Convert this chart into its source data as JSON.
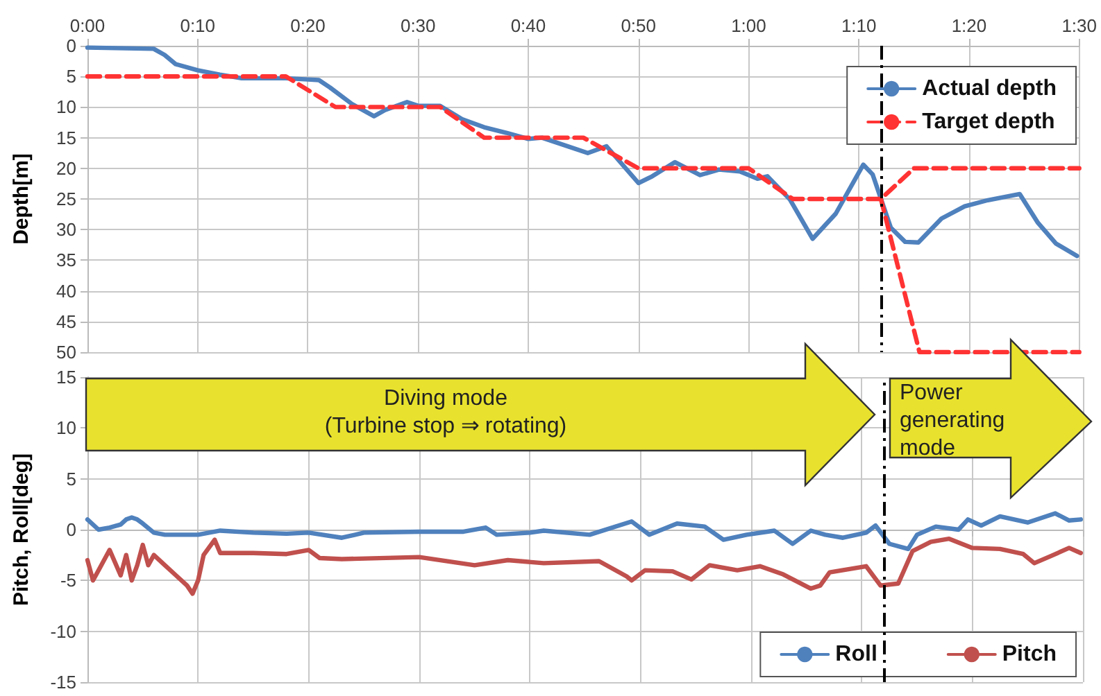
{
  "chart_data": [
    {
      "type": "line",
      "ylabel": "Depth[m]",
      "xlim": [
        0,
        90
      ],
      "xticks": [
        {
          "value": 0,
          "label": "0:00"
        },
        {
          "value": 10,
          "label": "0:10"
        },
        {
          "value": 20,
          "label": "0:20"
        },
        {
          "value": 30,
          "label": "0:30"
        },
        {
          "value": 40,
          "label": "0:40"
        },
        {
          "value": 50,
          "label": "0:50"
        },
        {
          "value": 60,
          "label": "1:00"
        },
        {
          "value": 70,
          "label": "1:10"
        },
        {
          "value": 80,
          "label": "1:20"
        },
        {
          "value": 90,
          "label": "1:30"
        }
      ],
      "ylim": [
        50,
        0
      ],
      "yticks": [
        0,
        5,
        10,
        15,
        20,
        25,
        30,
        35,
        40,
        45,
        50
      ],
      "grid": true,
      "legend": "top right",
      "marker": "none",
      "series": [
        {
          "name": "Actual depth",
          "color": "#4f81bd",
          "line_style": "solid",
          "x": [
            0,
            6,
            7,
            8,
            10,
            12,
            14,
            16,
            18,
            20,
            21,
            22,
            24,
            26,
            27,
            29,
            30,
            32,
            34,
            36,
            38,
            40,
            41.25,
            45.4,
            47.1,
            50,
            51.25,
            53.3,
            55.6,
            57.3,
            59.2,
            60.8,
            61.7,
            63.75,
            65.8,
            67.9,
            70.4,
            71.25,
            72.9,
            74.2,
            75.4,
            77.5,
            79.6,
            81.7,
            84.6,
            86.25,
            87.9,
            89.8
          ],
          "values": [
            0.3,
            0.5,
            1.5,
            3,
            4,
            4.7,
            5.3,
            5.3,
            5.3,
            5.5,
            5.6,
            6.8,
            9.5,
            11.5,
            10.5,
            9.2,
            9.8,
            9.8,
            12,
            13.3,
            14.2,
            15.2,
            15,
            17.5,
            16.4,
            22.4,
            21.3,
            19,
            21.1,
            20.2,
            20.5,
            21.7,
            21.3,
            25.1,
            31.5,
            27.4,
            19.4,
            21,
            29.7,
            32,
            32.1,
            28.2,
            26.2,
            25.2,
            24.2,
            28.9,
            32.3,
            34.3
          ]
        },
        {
          "name": "Target depth",
          "color": "#ff3333",
          "line_style": "dashed",
          "x": [
            0,
            18,
            22.5,
            32,
            36,
            45,
            50,
            60,
            64,
            72,
            75,
            90
          ],
          "values": [
            5,
            5,
            10,
            10,
            15,
            15,
            20,
            20,
            25,
            25,
            20,
            20
          ]
        },
        {
          "color": "#ff3333",
          "line_style": "dashed",
          "x": [
            72,
            75.5,
            90
          ],
          "values": [
            25,
            50,
            50
          ]
        }
      ],
      "ref_lines": [
        {
          "axis": "x",
          "value": 72,
          "color": "#000000",
          "line_style": "dashed"
        }
      ]
    },
    {
      "type": "line",
      "ylabel": "Pitch, Roll[deg]",
      "xlim": [
        0,
        90
      ],
      "xticks": [
        0,
        10,
        20,
        30,
        40,
        50,
        60,
        70,
        80,
        90
      ],
      "ylim": [
        -15,
        15
      ],
      "yticks": [
        -15,
        -10,
        -5,
        0,
        5,
        10,
        15
      ],
      "grid": true,
      "legend": "bottom right",
      "marker": "none",
      "tick_labels": "y",
      "annotations": [
        "Diving mode\n(Turbine stop ⇒ rotating)",
        "Power generating mode"
      ],
      "series": [
        {
          "name": "Roll",
          "color": "#4f81bd",
          "line_style": "solid",
          "x": [
            0,
            1,
            2,
            3,
            3.5,
            4,
            4.5,
            5,
            6,
            7,
            10,
            12,
            15,
            18,
            20,
            23,
            25,
            30,
            34,
            36,
            37,
            40,
            41.25,
            45.4,
            49.2,
            50.8,
            53.3,
            55.8,
            57.5,
            59.6,
            62.1,
            63.75,
            65.4,
            66.7,
            68.3,
            70.4,
            71.25,
            72.5,
            74.2,
            75,
            76.7,
            78.75,
            79.6,
            80.8,
            82.5,
            85,
            87.5,
            88.75,
            89.8
          ],
          "values": [
            1,
            0,
            0.2,
            0.5,
            1,
            1.2,
            1,
            0.6,
            -0.3,
            -0.5,
            -0.5,
            -0.1,
            -0.3,
            -0.4,
            -0.3,
            -0.8,
            -0.3,
            -0.2,
            -0.2,
            0.2,
            -0.5,
            -0.3,
            -0.1,
            -0.5,
            0.8,
            -0.5,
            0.6,
            0.3,
            -1,
            -0.5,
            -0.1,
            -1.4,
            -0.1,
            -0.5,
            -0.8,
            -0.3,
            0.4,
            -1.4,
            -1.9,
            -0.5,
            0.3,
            0,
            1,
            0.4,
            1.3,
            0.7,
            1.6,
            0.9,
            1
          ]
        },
        {
          "name": "Pitch",
          "color": "#c0504d",
          "line_style": "solid",
          "x": [
            0,
            0.5,
            1,
            2,
            3,
            3.5,
            4,
            4.5,
            5,
            5.5,
            6,
            7,
            8,
            9,
            9.5,
            10,
            10.5,
            11.5,
            12,
            15,
            18,
            20,
            21,
            23,
            30,
            35,
            38,
            41.25,
            46.25,
            48.75,
            49.2,
            50.4,
            52.9,
            54.6,
            56.25,
            58.75,
            60.8,
            62.9,
            65.4,
            66.25,
            67.1,
            70.4,
            71.7,
            73.3,
            74.6,
            76.25,
            77.9,
            80,
            82.5,
            84.6,
            85.6,
            87.1,
            88.75,
            89.8
          ],
          "values": [
            -3,
            -5,
            -4,
            -2,
            -4.5,
            -2.5,
            -5,
            -3.5,
            -1.5,
            -3.5,
            -2.5,
            -3.5,
            -4.5,
            -5.5,
            -6.3,
            -5,
            -2.5,
            -1,
            -2.3,
            -2.3,
            -2.4,
            -2,
            -2.8,
            -2.9,
            -2.7,
            -3.5,
            -3,
            -3.3,
            -3.1,
            -4.6,
            -5,
            -4,
            -4.1,
            -4.9,
            -3.5,
            -4,
            -3.6,
            -4.4,
            -5.8,
            -5.5,
            -4.2,
            -3.6,
            -5.5,
            -5.3,
            -2.1,
            -1.2,
            -0.9,
            -1.8,
            -1.9,
            -2.4,
            -3.3,
            -2.6,
            -1.8,
            -2.3
          ]
        }
      ],
      "ref_lines": [
        {
          "axis": "x",
          "value": 72,
          "color": "#000000",
          "line_style": "dashed"
        }
      ]
    }
  ]
}
